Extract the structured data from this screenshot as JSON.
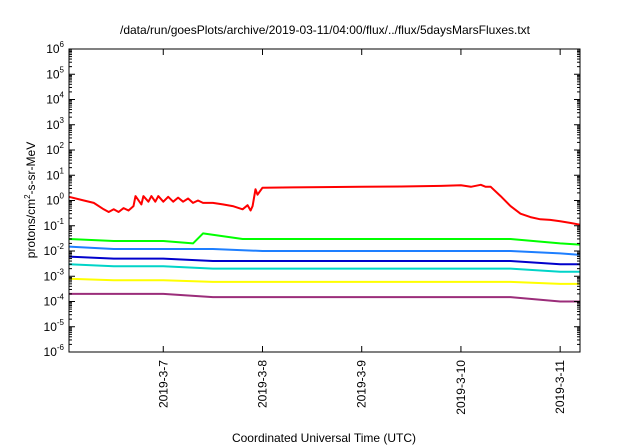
{
  "chart_data": {
    "type": "line",
    "title": "/data/run/goesPlots/archive/2019-03-11/04:00/flux/../flux/5daysMarsFluxes.txt",
    "xlabel": "Coordinated Universal Time (UTC)",
    "ylabel_prefix": "protons/cm",
    "ylabel_sup": "2",
    "ylabel_suffix": "-s-sr-MeV",
    "yscale": "log",
    "ylim_exp": [
      -6,
      6
    ],
    "y_tick_labels": [
      {
        "exp": -6,
        "base": "10",
        "sup": "-6"
      },
      {
        "exp": -5,
        "base": "10",
        "sup": "-5"
      },
      {
        "exp": -4,
        "base": "10",
        "sup": "-4"
      },
      {
        "exp": -3,
        "base": "10",
        "sup": "-3"
      },
      {
        "exp": -2,
        "base": "10",
        "sup": "-2"
      },
      {
        "exp": -1,
        "base": "10",
        "sup": "-1"
      },
      {
        "exp": 0,
        "base": "10",
        "sup": "0"
      },
      {
        "exp": 1,
        "base": "10",
        "sup": "1"
      },
      {
        "exp": 2,
        "base": "10",
        "sup": "2"
      },
      {
        "exp": 3,
        "base": "10",
        "sup": "3"
      },
      {
        "exp": 4,
        "base": "10",
        "sup": "4"
      },
      {
        "exp": 5,
        "base": "10",
        "sup": "5"
      },
      {
        "exp": 6,
        "base": "10",
        "sup": "6"
      }
    ],
    "x_range_days": [
      6.05,
      11.2
    ],
    "x_ticks": [
      {
        "day": 7,
        "label": "2019-3-7"
      },
      {
        "day": 8,
        "label": "2019-3-8"
      },
      {
        "day": 9,
        "label": "2019-3-9"
      },
      {
        "day": 10,
        "label": "2019-3-10"
      },
      {
        "day": 11,
        "label": "2019-3-11"
      }
    ],
    "grid": false,
    "legend": "none",
    "series": [
      {
        "color": "#ff0000",
        "x": [
          6.05,
          6.2,
          6.3,
          6.4,
          6.45,
          6.5,
          6.55,
          6.6,
          6.65,
          6.7,
          6.72,
          6.78,
          6.8,
          6.85,
          6.88,
          6.92,
          6.95,
          7.0,
          7.05,
          7.1,
          7.15,
          7.2,
          7.25,
          7.3,
          7.35,
          7.4,
          7.5,
          7.6,
          7.7,
          7.8,
          7.85,
          7.88,
          7.9,
          7.93,
          7.95,
          8.0,
          8.3,
          8.6,
          9.0,
          9.4,
          9.8,
          10.0,
          10.1,
          10.2,
          10.25,
          10.3,
          10.4,
          10.5,
          10.6,
          10.7,
          10.8,
          10.9,
          11.0,
          11.1,
          11.2
        ],
        "y": [
          1.4,
          1.0,
          0.8,
          0.45,
          0.35,
          0.45,
          0.35,
          0.5,
          0.4,
          0.6,
          1.5,
          0.7,
          1.5,
          0.9,
          1.5,
          0.9,
          1.5,
          0.9,
          1.4,
          0.9,
          1.3,
          0.9,
          1.2,
          0.8,
          1.0,
          0.8,
          0.8,
          0.7,
          0.6,
          0.45,
          0.65,
          0.4,
          0.6,
          2.8,
          1.7,
          3.2,
          3.3,
          3.4,
          3.5,
          3.6,
          3.8,
          4.0,
          3.5,
          4.2,
          3.5,
          3.5,
          1.5,
          0.6,
          0.3,
          0.22,
          0.18,
          0.17,
          0.15,
          0.13,
          0.11
        ]
      },
      {
        "color": "#00ff00",
        "x": [
          6.05,
          6.5,
          7.0,
          7.3,
          7.4,
          7.8,
          8.0,
          8.5,
          9.0,
          9.5,
          10.0,
          10.3,
          10.5,
          11.0,
          11.2
        ],
        "y": [
          0.03,
          0.025,
          0.025,
          0.02,
          0.05,
          0.03,
          0.03,
          0.03,
          0.03,
          0.03,
          0.03,
          0.03,
          0.03,
          0.02,
          0.018
        ]
      },
      {
        "color": "#1e7fff",
        "x": [
          6.05,
          6.5,
          7.0,
          7.5,
          8.0,
          8.5,
          9.0,
          9.5,
          10.0,
          10.5,
          11.0,
          11.2
        ],
        "y": [
          0.015,
          0.012,
          0.012,
          0.012,
          0.01,
          0.01,
          0.01,
          0.01,
          0.01,
          0.01,
          0.008,
          0.007
        ]
      },
      {
        "color": "#0000cc",
        "x": [
          6.05,
          6.5,
          7.0,
          7.5,
          8.0,
          8.5,
          9.0,
          9.5,
          10.0,
          10.5,
          11.0,
          11.2
        ],
        "y": [
          0.006,
          0.005,
          0.005,
          0.004,
          0.004,
          0.004,
          0.004,
          0.004,
          0.004,
          0.004,
          0.003,
          0.003
        ]
      },
      {
        "color": "#00d4c8",
        "x": [
          6.05,
          6.5,
          7.0,
          7.5,
          8.0,
          8.5,
          9.0,
          9.5,
          10.0,
          10.5,
          11.0,
          11.2
        ],
        "y": [
          0.003,
          0.0025,
          0.0025,
          0.002,
          0.002,
          0.002,
          0.002,
          0.002,
          0.002,
          0.002,
          0.0015,
          0.0015
        ]
      },
      {
        "color": "#ffff00",
        "x": [
          6.05,
          6.5,
          7.0,
          7.5,
          8.0,
          8.5,
          9.0,
          9.5,
          10.0,
          10.5,
          11.0,
          11.2
        ],
        "y": [
          0.0008,
          0.0007,
          0.0007,
          0.0006,
          0.0006,
          0.0006,
          0.0006,
          0.0006,
          0.0006,
          0.0006,
          0.0005,
          0.0005
        ]
      },
      {
        "color": "#9b2d7a",
        "x": [
          6.05,
          6.5,
          7.0,
          7.5,
          8.0,
          8.5,
          9.0,
          9.5,
          10.0,
          10.5,
          11.0,
          11.2
        ],
        "y": [
          0.0002,
          0.0002,
          0.0002,
          0.00015,
          0.00015,
          0.00015,
          0.00015,
          0.00015,
          0.00015,
          0.00015,
          0.0001,
          0.0001
        ]
      }
    ]
  }
}
